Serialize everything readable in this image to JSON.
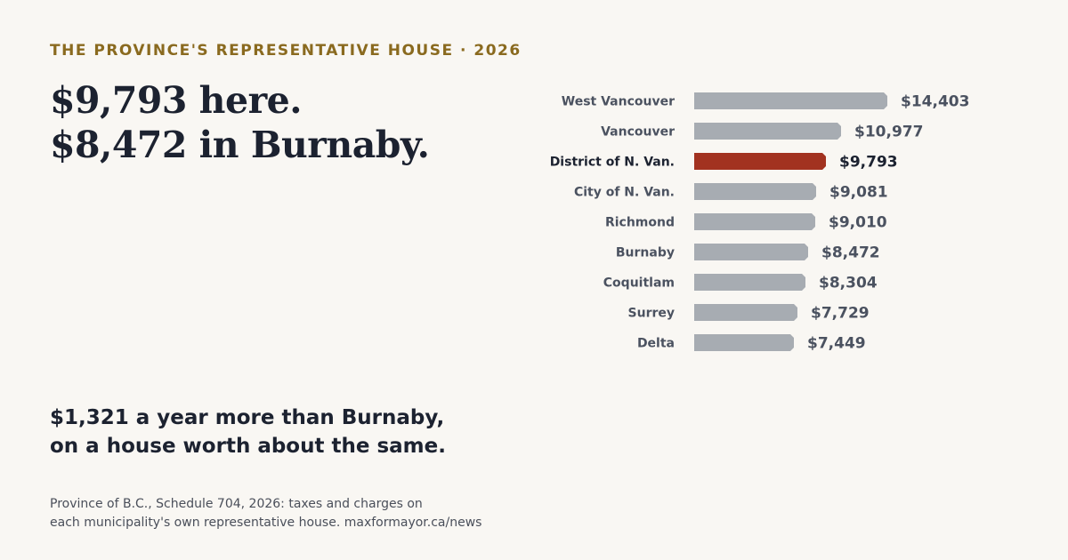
{
  "eyebrow": "THE PROVINCE'S REPRESENTATIVE HOUSE · 2026",
  "headline": {
    "line1": "$9,793 here.",
    "line2": "$8,472 in Burnaby."
  },
  "takeaway": {
    "line1": "$1,321 a year more than Burnaby,",
    "line2": "on a house worth about the same."
  },
  "source": {
    "line1": "Province of B.C., Schedule 704, 2026: taxes and charges on",
    "line2": "each municipality's own representative house. maxformayor.ca/news"
  },
  "colors": {
    "bar": "#a7acb2",
    "highlight": "#a23220",
    "eyebrow": "#8a6a1f",
    "text": "#1c2230",
    "background": "#f9f7f3"
  },
  "chart_data": {
    "type": "bar",
    "orientation": "horizontal",
    "categories": [
      "West Vancouver",
      "Vancouver",
      "District of N. Van.",
      "City of N. Van.",
      "Richmond",
      "Burnaby",
      "Coquitlam",
      "Surrey",
      "Delta"
    ],
    "values": [
      14403,
      10977,
      9793,
      9081,
      9010,
      8472,
      8304,
      7729,
      7449
    ],
    "value_labels": [
      "$14,403",
      "$10,977",
      "$9,793",
      "$9,081",
      "$9,010",
      "$8,472",
      "$8,304",
      "$7,729",
      "$7,449"
    ],
    "highlight": "District of N. Van.",
    "xlim": [
      0,
      14403
    ],
    "grid": false,
    "legend": "none"
  }
}
